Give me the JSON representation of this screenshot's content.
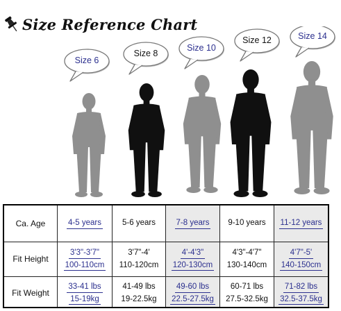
{
  "title": "Size Reference Chart",
  "colors": {
    "blue": "#2b2f8e",
    "black": "#111111",
    "silhouette_gray": "#8f8f8f",
    "silhouette_black": "#101010",
    "shade": "#eaeaea"
  },
  "figures": [
    {
      "bubble": "Size 6",
      "color": "gray",
      "text_color": "blue"
    },
    {
      "bubble": "Size 8",
      "color": "black",
      "text_color": "black"
    },
    {
      "bubble": "Size 10",
      "color": "gray",
      "text_color": "blue"
    },
    {
      "bubble": "Size 12",
      "color": "black",
      "text_color": "black"
    },
    {
      "bubble": "Size 14",
      "color": "gray",
      "text_color": "blue"
    }
  ],
  "table": {
    "rows": [
      {
        "label": "Ca. Age",
        "values": [
          [
            "4-5 years"
          ],
          [
            "5-6 years"
          ],
          [
            "7-8 years"
          ],
          [
            "9-10 years"
          ],
          [
            "11-12 years"
          ]
        ]
      },
      {
        "label": "Fit Height",
        "values": [
          [
            "3'3\"-3'7\"",
            "100-110cm"
          ],
          [
            "3'7\"-4'",
            "110-120cm"
          ],
          [
            "4'-4'3\"",
            "120-130cm"
          ],
          [
            "4'3\"-4'7\"",
            "130-140cm"
          ],
          [
            "4'7\"-5'",
            "140-150cm"
          ]
        ]
      },
      {
        "label": "Fit Weight",
        "values": [
          [
            "33-41 lbs",
            "15-19kg"
          ],
          [
            "41-49 lbs",
            "19-22.5kg"
          ],
          [
            "49-60 lbs",
            "22.5-27.5kg"
          ],
          [
            "60-71 lbs",
            "27.5-32.5kg"
          ],
          [
            "71-82 lbs",
            "32.5-37.5kg"
          ]
        ]
      }
    ]
  }
}
